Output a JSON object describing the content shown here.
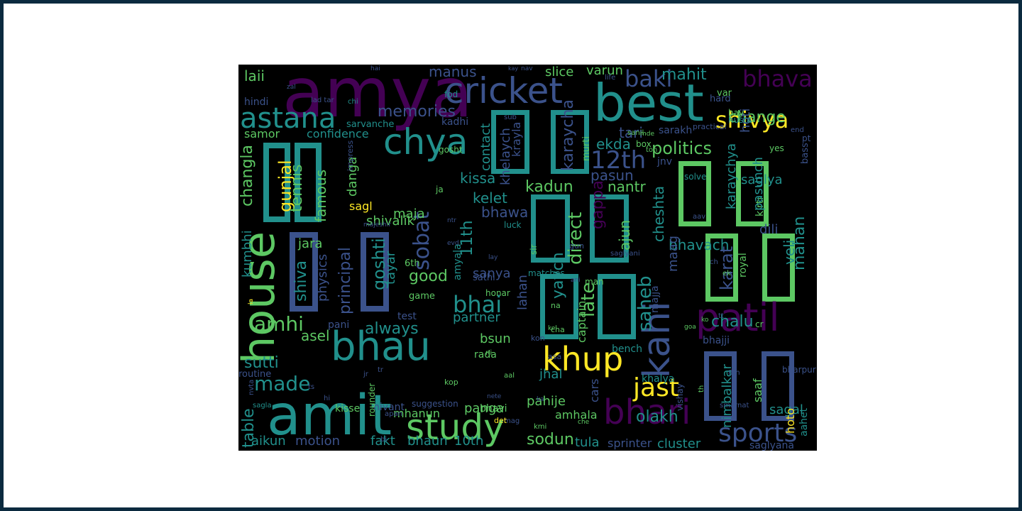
{
  "background_color": "#000000",
  "palette": [
    "#440154",
    "#3b528b",
    "#21908c",
    "#5dc863",
    "#fde725"
  ],
  "words": [
    {
      "text": "amya",
      "color": "#440154"
    },
    {
      "text": "best",
      "color": "#21908c"
    },
    {
      "text": "cricket",
      "color": "#3b528b"
    },
    {
      "text": "astana",
      "color": "#21908c"
    },
    {
      "text": "chya",
      "color": "#21908c"
    },
    {
      "text": "house",
      "color": "#5dc863"
    },
    {
      "text": "bhau",
      "color": "#21908c"
    },
    {
      "text": "amit",
      "color": "#21908c"
    },
    {
      "text": "study",
      "color": "#5dc863"
    },
    {
      "text": "patil",
      "color": "#440154"
    },
    {
      "text": "kahi",
      "color": "#3b528b"
    },
    {
      "text": "khup",
      "color": "#fde725"
    },
    {
      "text": "bhari",
      "color": "#440154"
    },
    {
      "text": "sports",
      "color": "#3b528b"
    },
    {
      "text": "jast",
      "color": "#fde725"
    },
    {
      "text": "shivya",
      "color": "#fde725"
    },
    {
      "text": "bhava",
      "color": "#440154"
    },
    {
      "text": "baki",
      "color": "#3b528b"
    },
    {
      "text": "mahit",
      "color": "#21908c"
    },
    {
      "text": "12th",
      "color": "#3b528b"
    },
    {
      "text": "politics",
      "color": "#5dc863"
    },
    {
      "text": "memories",
      "color": "#3b528b"
    },
    {
      "text": "amhi",
      "color": "#5dc863"
    },
    {
      "text": "made",
      "color": "#21908c"
    },
    {
      "text": "sobat",
      "color": "#3b528b"
    },
    {
      "text": "bhai",
      "color": "#21908c"
    },
    {
      "text": "principal",
      "color": "#3b528b"
    },
    {
      "text": "good",
      "color": "#5dc863"
    },
    {
      "text": "always",
      "color": "#21908c"
    },
    {
      "text": "sutti",
      "color": "#21908c"
    },
    {
      "text": "table",
      "color": "#21908c"
    },
    {
      "text": "chalu",
      "color": "#21908c"
    },
    {
      "text": "olakh",
      "color": "#21908c"
    },
    {
      "text": "sodun",
      "color": "#5dc863"
    },
    {
      "text": "cluster",
      "color": "#21908c"
    },
    {
      "text": "tula",
      "color": "#21908c"
    },
    {
      "text": "sprinter",
      "color": "#3b528b"
    },
    {
      "text": "motion",
      "color": "#3b528b"
    },
    {
      "text": "aikun",
      "color": "#21908c"
    },
    {
      "text": "fakt",
      "color": "#21908c"
    },
    {
      "text": "bhaun",
      "color": "#21908c"
    },
    {
      "text": "10th",
      "color": "#21908c"
    },
    {
      "text": "manus",
      "color": "#3b528b"
    },
    {
      "text": "slice",
      "color": "#5dc863"
    },
    {
      "text": "varun",
      "color": "#5dc863"
    },
    {
      "text": "laii",
      "color": "#5dc863"
    },
    {
      "text": "hindi",
      "color": "#3b528b"
    },
    {
      "text": "samor",
      "color": "#5dc863"
    },
    {
      "text": "confidence",
      "color": "#21908c"
    },
    {
      "text": "kadhi",
      "color": "#3b528b"
    },
    {
      "text": "sarvanche",
      "color": "#21908c"
    },
    {
      "text": "contact",
      "color": "#21908c"
    },
    {
      "text": "ekda",
      "color": "#21908c"
    },
    {
      "text": "tari",
      "color": "#3b528b"
    },
    {
      "text": "pasun",
      "color": "#3b528b"
    },
    {
      "text": "kadun",
      "color": "#5dc863"
    },
    {
      "text": "nantr",
      "color": "#5dc863"
    },
    {
      "text": "kelet",
      "color": "#21908c"
    },
    {
      "text": "bhawa",
      "color": "#3b528b"
    },
    {
      "text": "kissa",
      "color": "#21908c"
    },
    {
      "text": "sagl",
      "color": "#fde725"
    },
    {
      "text": "maja",
      "color": "#5dc863"
    },
    {
      "text": "shivalik",
      "color": "#5dc863"
    },
    {
      "text": "famous",
      "color": "#5dc863"
    },
    {
      "text": "danga",
      "color": "#5dc863"
    },
    {
      "text": "gunjal",
      "color": "#fde725"
    },
    {
      "text": "tennis",
      "color": "#5dc863"
    },
    {
      "text": "changla",
      "color": "#5dc863"
    },
    {
      "text": "kumbhi",
      "color": "#21908c"
    },
    {
      "text": "shiva",
      "color": "#21908c"
    },
    {
      "text": "physics",
      "color": "#3b528b"
    },
    {
      "text": "jara",
      "color": "#5dc863"
    },
    {
      "text": "goshti",
      "color": "#21908c"
    },
    {
      "text": "tayar",
      "color": "#21908c"
    },
    {
      "text": "11th",
      "color": "#21908c"
    },
    {
      "text": "sanya",
      "color": "#3b528b"
    },
    {
      "text": "amyala",
      "color": "#21908c"
    },
    {
      "text": "asel",
      "color": "#5dc863"
    },
    {
      "text": "test",
      "color": "#3b528b"
    },
    {
      "text": "pani",
      "color": "#3b528b"
    },
    {
      "text": "partner",
      "color": "#21908c"
    },
    {
      "text": "bsun",
      "color": "#5dc863"
    },
    {
      "text": "lahan",
      "color": "#3b528b"
    },
    {
      "text": "captain",
      "color": "#5dc863"
    },
    {
      "text": "late",
      "color": "#5dc863"
    },
    {
      "text": "saheb",
      "color": "#21908c"
    },
    {
      "text": "yaych",
      "color": "#21908c"
    },
    {
      "text": "direct",
      "color": "#5dc863"
    },
    {
      "text": "ajun",
      "color": "#5dc863"
    },
    {
      "text": "cheshta",
      "color": "#21908c"
    },
    {
      "text": "bhavach",
      "color": "#21908c"
    },
    {
      "text": "maag",
      "color": "#3b528b"
    },
    {
      "text": "majja",
      "color": "#3b528b"
    },
    {
      "text": "khelaych",
      "color": "#3b528b"
    },
    {
      "text": "krayla",
      "color": "#3b528b"
    },
    {
      "text": "karaycha",
      "color": "#3b528b"
    },
    {
      "text": "murti",
      "color": "#5dc863"
    },
    {
      "text": "change",
      "color": "#5dc863"
    },
    {
      "text": "hoti",
      "color": "#3b528b"
    },
    {
      "text": "saglya",
      "color": "#21908c"
    },
    {
      "text": "dili",
      "color": "#3b528b"
    },
    {
      "text": "veli",
      "color": "#21908c"
    },
    {
      "text": "mahan",
      "color": "#21908c"
    },
    {
      "text": "karat",
      "color": "#3b528b"
    },
    {
      "text": "royal",
      "color": "#5dc863"
    },
    {
      "text": "karaychya",
      "color": "#21908c"
    },
    {
      "text": "kirti",
      "color": "#5dc863"
    },
    {
      "text": "pasunch",
      "color": "#21908c"
    },
    {
      "text": "saaf",
      "color": "#5dc863"
    },
    {
      "text": "nimbalkar",
      "color": "#21908c"
    },
    {
      "text": "sagal",
      "color": "#21908c"
    },
    {
      "text": "hoto",
      "color": "#fde725"
    },
    {
      "text": "aahet",
      "color": "#21908c"
    },
    {
      "text": "saglyana",
      "color": "#3b528b"
    },
    {
      "text": "bharpur",
      "color": "#3b528b"
    },
    {
      "text": "bhajji",
      "color": "#3b528b"
    },
    {
      "text": "vishay",
      "color": "#3b528b"
    },
    {
      "text": "khalya",
      "color": "#21908c"
    },
    {
      "text": "pahije",
      "color": "#5dc863"
    },
    {
      "text": "amhala",
      "color": "#5dc863"
    },
    {
      "text": "jhal",
      "color": "#21908c"
    },
    {
      "text": "cars",
      "color": "#3b528b"
    },
    {
      "text": "bench",
      "color": "#21908c"
    },
    {
      "text": "kisse",
      "color": "#5dc863"
    },
    {
      "text": "panga",
      "color": "#5dc863"
    },
    {
      "text": "mhanun",
      "color": "#5dc863"
    },
    {
      "text": "rada",
      "color": "#5dc863"
    },
    {
      "text": "bhavi",
      "color": "#5dc863"
    },
    {
      "text": "nivant",
      "color": "#3b528b"
    },
    {
      "text": "rounder",
      "color": "#5dc863"
    },
    {
      "text": "routine",
      "color": "#3b528b"
    },
    {
      "text": "sagla",
      "color": "#21908c"
    },
    {
      "text": "suggestion",
      "color": "#3b528b"
    },
    {
      "text": "apan",
      "color": "#3b528b"
    },
    {
      "text": "jnv",
      "color": "#3b528b"
    },
    {
      "text": "sarakh",
      "color": "#3b528b"
    },
    {
      "text": "solve",
      "color": "#21908c"
    },
    {
      "text": "game",
      "color": "#5dc863"
    },
    {
      "text": "sathi",
      "color": "#3b528b"
    },
    {
      "text": "honar",
      "color": "#5dc863"
    },
    {
      "text": "6th",
      "color": "#5dc863"
    },
    {
      "text": "gosht",
      "color": "#5dc863"
    },
    {
      "text": "matches",
      "color": "#21908c"
    },
    {
      "text": "man",
      "color": "#5dc863"
    },
    {
      "text": "practical",
      "color": "#3b528b"
    },
    {
      "text": "hard",
      "color": "#3b528b"
    },
    {
      "text": "nusta",
      "color": "#21908c"
    },
    {
      "text": "var",
      "color": "#5dc863"
    },
    {
      "text": "bass",
      "color": "#3b528b"
    },
    {
      "text": "yes",
      "color": "#5dc863"
    },
    {
      "text": "box",
      "color": "#5dc863"
    },
    {
      "text": "toh",
      "color": "#5dc863"
    },
    {
      "text": "mde",
      "color": "#5dc863"
    },
    {
      "text": "sanil",
      "color": "#5dc863"
    },
    {
      "text": "hay",
      "color": "#5dc863"
    },
    {
      "text": "sub",
      "color": "#3b528b"
    },
    {
      "text": "fod",
      "color": "#21908c"
    },
    {
      "text": "ja",
      "color": "#5dc863"
    },
    {
      "text": "impress",
      "color": "#3b528b"
    },
    {
      "text": "chi",
      "color": "#21908c"
    },
    {
      "text": "lad tar",
      "color": "#3b528b"
    },
    {
      "text": "zal",
      "color": "#3b528b"
    },
    {
      "text": "hai",
      "color": "#3b528b"
    },
    {
      "text": "kay",
      "color": "#3b528b"
    },
    {
      "text": "nav",
      "color": "#3b528b"
    },
    {
      "text": "life",
      "color": "#3b528b"
    },
    {
      "text": "ntr",
      "color": "#3b528b"
    },
    {
      "text": "majeshir",
      "color": "#3b528b"
    },
    {
      "text": "evd",
      "color": "#3b528b"
    },
    {
      "text": "gappa",
      "color": "#440154"
    },
    {
      "text": "luck",
      "color": "#21908c"
    },
    {
      "text": "gun",
      "color": "#3b528b"
    },
    {
      "text": "sir",
      "color": "#5dc863"
    },
    {
      "text": "lay",
      "color": "#3b528b"
    },
    {
      "text": "saglyani",
      "color": "#3b528b"
    },
    {
      "text": "ani",
      "color": "#3b528b"
    },
    {
      "text": "na",
      "color": "#5dc863"
    },
    {
      "text": "cha",
      "color": "#5dc863"
    },
    {
      "text": "kon",
      "color": "#3b528b"
    },
    {
      "text": "kel",
      "color": "#5dc863"
    },
    {
      "text": "asa",
      "color": "#3b528b"
    },
    {
      "text": "mag",
      "color": "#3b528b"
    },
    {
      "text": "ka",
      "color": "#3b528b"
    },
    {
      "text": "che",
      "color": "#5dc863"
    },
    {
      "text": "kmi",
      "color": "#5dc863"
    },
    {
      "text": "ni",
      "color": "#5dc863"
    },
    {
      "text": "kop",
      "color": "#5dc863"
    },
    {
      "text": "aal",
      "color": "#5dc863"
    },
    {
      "text": "nete",
      "color": "#3b528b"
    },
    {
      "text": "det",
      "color": "#fde725"
    },
    {
      "text": "bi",
      "color": "#3b528b"
    },
    {
      "text": "jr",
      "color": "#3b528b"
    },
    {
      "text": "tr",
      "color": "#3b528b"
    },
    {
      "text": "ts",
      "color": "#3b528b"
    },
    {
      "text": "la",
      "color": "#fde725"
    },
    {
      "text": "nvta",
      "color": "#3b528b"
    },
    {
      "text": "hi",
      "color": "#3b528b"
    },
    {
      "text": "tt",
      "color": "#3b528b"
    },
    {
      "text": "goa",
      "color": "#5dc863"
    },
    {
      "text": "ko",
      "color": "#5dc863"
    },
    {
      "text": "cr",
      "color": "#5dc863"
    },
    {
      "text": "smarnat",
      "color": "#3b528b"
    },
    {
      "text": "8th",
      "color": "#3b528b"
    },
    {
      "text": "th",
      "color": "#5dc863"
    },
    {
      "text": "pt",
      "color": "#3b528b"
    },
    {
      "text": "ek",
      "color": "#5dc863"
    },
    {
      "text": "ch",
      "color": "#3b528b"
    },
    {
      "text": "aav",
      "color": "#3b528b"
    },
    {
      "text": "end",
      "color": "#3b528b"
    }
  ]
}
